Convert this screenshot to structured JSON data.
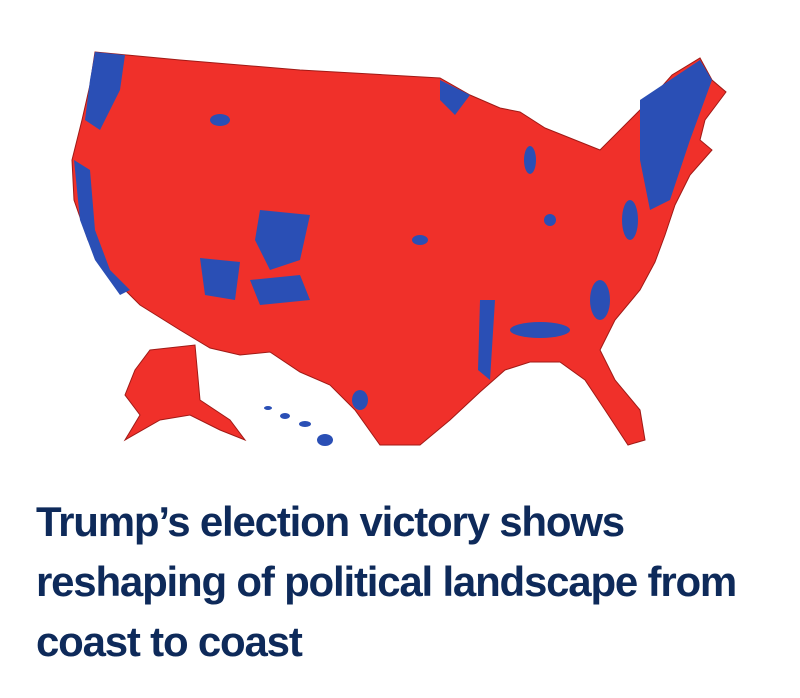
{
  "headline": "Trump’s election victory shows reshaping of political landscape from coast to coast"
}
